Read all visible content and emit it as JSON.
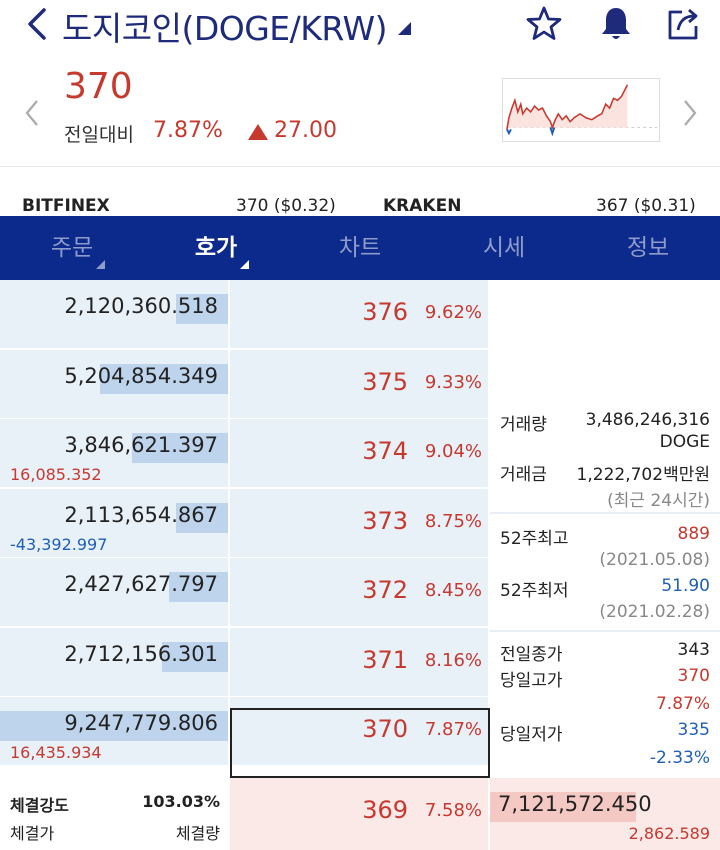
{
  "header": {
    "title": "도지코인(DOGE/KRW)",
    "icons": [
      "back-chevron-icon",
      "star-icon",
      "bell-icon",
      "share-icon"
    ]
  },
  "ticker": {
    "price": "370",
    "change_label": "전일대비",
    "change_pct": "7.87%",
    "change_amount": "27.00",
    "direction": "up"
  },
  "exchanges": [
    {
      "name": "BITFINEX",
      "value": "370 ($0.32)"
    },
    {
      "name": "KRAKEN",
      "value": "367 ($0.31)"
    }
  ],
  "tabs": [
    {
      "label": "주문",
      "has_caret": true,
      "active": false
    },
    {
      "label": "호가",
      "has_caret": true,
      "active": true
    },
    {
      "label": "차트",
      "has_caret": false,
      "active": false
    },
    {
      "label": "시세",
      "has_caret": false,
      "active": false
    },
    {
      "label": "정보",
      "has_caret": false,
      "active": false
    }
  ],
  "asks": [
    {
      "volume": "2,120,360.518",
      "price": "376",
      "pct": "9.62%",
      "change": "",
      "bar_fraction": 0.23
    },
    {
      "volume": "5,204,854.349",
      "price": "375",
      "pct": "9.33%",
      "change": "",
      "bar_fraction": 0.56
    },
    {
      "volume": "3,846,621.397",
      "price": "374",
      "pct": "9.04%",
      "change": "16,085.352",
      "bar_fraction": 0.42
    },
    {
      "volume": "2,113,654.867",
      "price": "373",
      "pct": "8.75%",
      "change": "-43,392.997",
      "bar_fraction": 0.23
    },
    {
      "volume": "2,427,627.797",
      "price": "372",
      "pct": "8.45%",
      "change": "",
      "bar_fraction": 0.26
    },
    {
      "volume": "2,712,156.301",
      "price": "371",
      "pct": "8.16%",
      "change": "",
      "bar_fraction": 0.29
    },
    {
      "volume": "9,247,779.806",
      "price": "370",
      "pct": "7.87%",
      "change": "16,435.934",
      "bar_fraction": 1.0
    }
  ],
  "bid": {
    "price": "369",
    "pct": "7.58%",
    "volume": "7,121,572.450",
    "change": "2,862.589",
    "bar_fraction": 0.77
  },
  "info": {
    "volume_label": "거래량",
    "volume_value": "3,486,246,316",
    "volume_unit": "DOGE",
    "amount_label": "거래금",
    "amount_value": "1,222,702백만원",
    "amount_note": "(최근 24시간)",
    "high52_label": "52주최고",
    "high52_value": "889",
    "high52_date": "(2021.05.08)",
    "low52_label": "52주최저",
    "low52_value": "51.90",
    "low52_date": "(2021.02.28)",
    "prev_close_label": "전일종가",
    "prev_close_value": "343",
    "day_high_label": "당일고가",
    "day_high_value": "370",
    "day_high_pct": "7.87%",
    "day_low_label": "당일저가",
    "day_low_value": "335",
    "day_low_pct": "-2.33%"
  },
  "strength": {
    "label": "체결강도",
    "value": "103.03%",
    "price_header": "체결가",
    "qty_header": "체결량"
  },
  "colors": {
    "up": "#c6392f",
    "down": "#1f5fb5",
    "navy": "#0b2a8b"
  }
}
